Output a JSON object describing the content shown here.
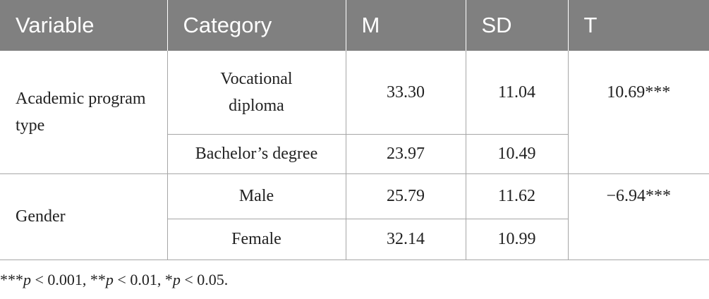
{
  "header": [
    "Variable",
    "Category",
    "M",
    "SD",
    "T"
  ],
  "groups": [
    {
      "variable": "Academic program type",
      "t": "10.69***",
      "rows": [
        {
          "category": [
            "Vocational",
            "diploma"
          ],
          "m": "33.30",
          "sd": "11.04"
        },
        {
          "category": [
            "Bachelor’s degree"
          ],
          "m": "23.97",
          "sd": "10.49"
        }
      ]
    },
    {
      "variable": "Gender",
      "t": "−6.94***",
      "rows": [
        {
          "category": [
            "Male"
          ],
          "m": "25.79",
          "sd": "11.62"
        },
        {
          "category": [
            "Female"
          ],
          "m": "32.14",
          "sd": "10.99"
        }
      ]
    }
  ],
  "footnote": [
    "***",
    "p",
    " < 0.001, **",
    "p",
    " < 0.01, *",
    "p",
    " < 0.05."
  ]
}
